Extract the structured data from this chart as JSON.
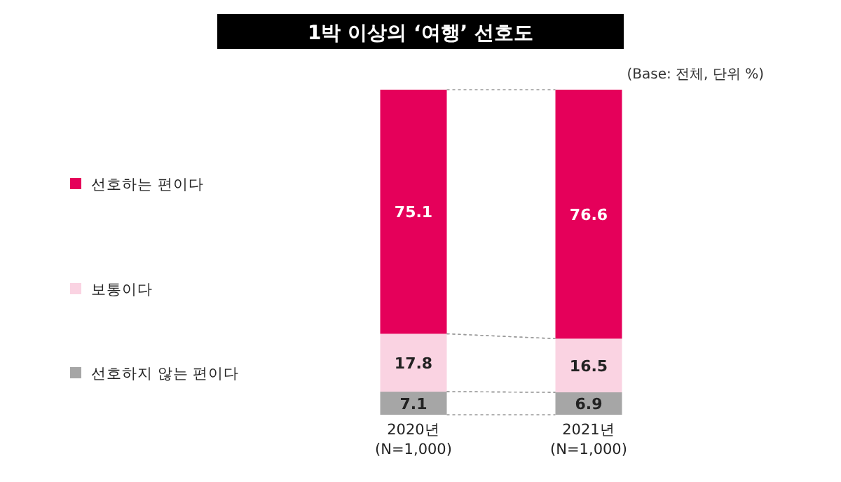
{
  "chart_data": {
    "type": "bar",
    "title": "1박 이상의 ‘여행’ 선호도",
    "annotations": [
      "(Base: 전체, 단위 %)"
    ],
    "categories": [
      "2020년\n(N=1,000)",
      "2021년\n(N=1,000)"
    ],
    "stacked": true,
    "data_labels": true,
    "legend": "left",
    "series": [
      {
        "name": "선호하지 않는 편이다",
        "color": "#a6a6a6",
        "values": [
          7.1,
          6.9
        ]
      },
      {
        "name": "보통이다",
        "color": "#fad3e2",
        "values": [
          17.8,
          16.5
        ]
      },
      {
        "name": "선호하는 편이다",
        "color": "#e5005a",
        "values": [
          75.1,
          76.6
        ]
      }
    ]
  }
}
